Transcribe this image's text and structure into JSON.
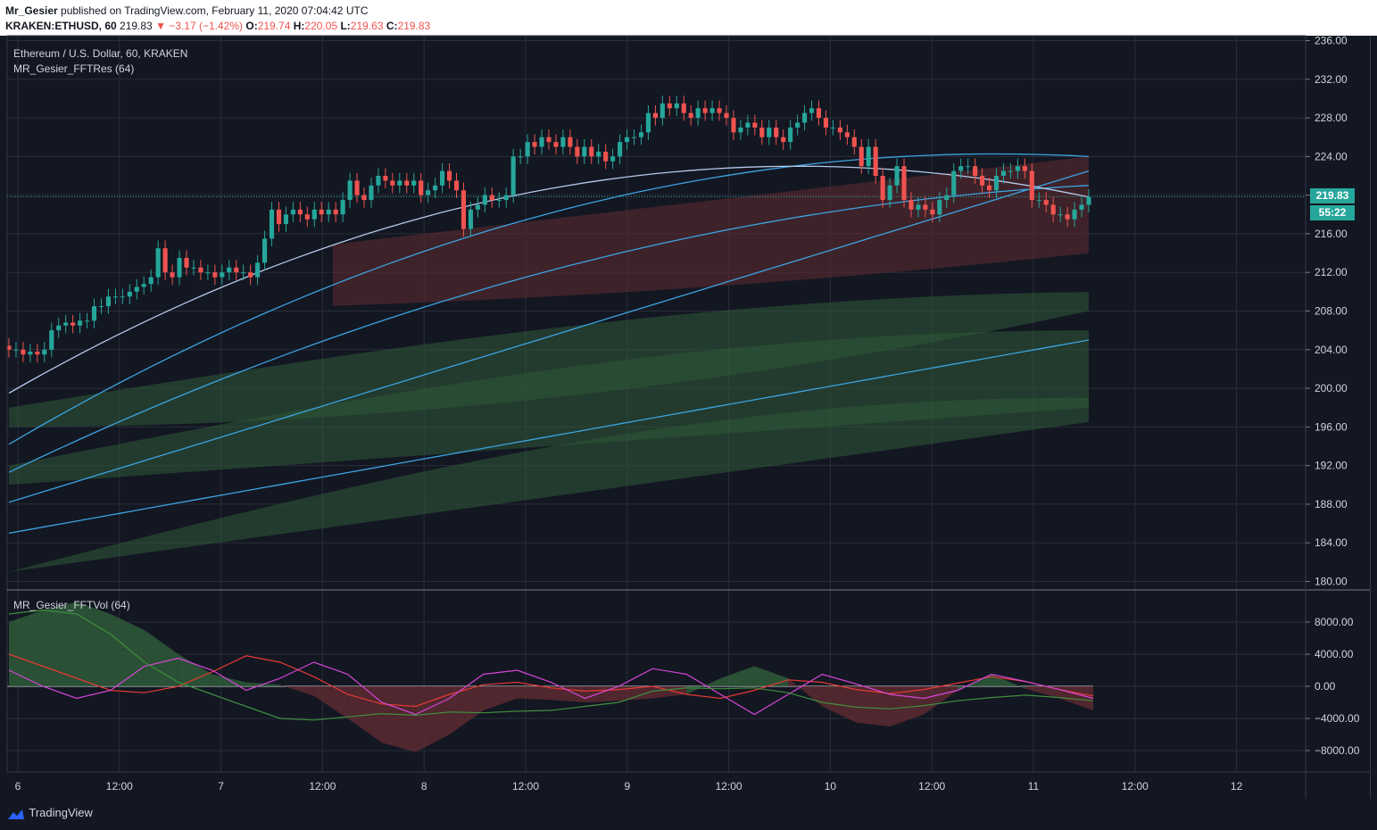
{
  "header": {
    "author": "Mr_Gesier",
    "published_text": "published on TradingView.com, February 11, 2020 07:04:42 UTC",
    "symbol": "KRAKEN:ETHUSD, 60",
    "last": "219.83",
    "change": "▼ −3.17 (−1.42%)",
    "o_label": "O:",
    "o_value": "219.74",
    "h_label": "H:",
    "h_value": "220.05",
    "l_label": "L:",
    "l_value": "219.63",
    "c_label": "C:",
    "c_value": "219.83"
  },
  "price_pane": {
    "title": "Ethereum / U.S. Dollar, 60, KRAKEN",
    "indicator": "MR_Gesier_FFTRes (64)",
    "last_price_label": "219.83",
    "countdown_label": "55:22"
  },
  "volume_pane": {
    "indicator": "MR_Gesier_FFTVol (64)"
  },
  "footer": {
    "brand": "TradingView"
  },
  "colors": {
    "background": "#131722",
    "grid": "#2a2e39",
    "up": "#26a69a",
    "down": "#ef5350",
    "band_green": "#2f5a38",
    "band_red": "#5c2a30",
    "line_blue": "#3ca3e0",
    "line_pale": "#b5c8e8"
  },
  "chart_data": [
    {
      "type": "candlestick",
      "title": "Ethereum / U.S. Dollar, 60, KRAKEN",
      "y_ticks": [
        "180.00",
        "184.00",
        "188.00",
        "192.00",
        "196.00",
        "200.00",
        "204.00",
        "208.00",
        "212.00",
        "216.00",
        "220.00",
        "224.00",
        "228.00",
        "232.00",
        "236.00"
      ],
      "x_ticks": [
        "6",
        "12:00",
        "7",
        "12:00",
        "8",
        "12:00",
        "9",
        "12:00",
        "10",
        "12:00",
        "11",
        "12:00",
        "12"
      ],
      "ylim": [
        179.5,
        236.3
      ],
      "last_price": 219.83,
      "close_series": [
        204.0,
        204.0,
        203.5,
        203.8,
        203.5,
        204.0,
        206.0,
        206.5,
        206.8,
        206.5,
        207.0,
        207.0,
        208.5,
        208.5,
        209.5,
        209.5,
        209.5,
        210.0,
        210.5,
        210.8,
        211.5,
        214.5,
        212.0,
        211.5,
        213.5,
        212.5,
        212.5,
        212.0,
        212.0,
        211.5,
        212.0,
        212.5,
        212.0,
        212.0,
        211.5,
        213.0,
        215.5,
        218.5,
        217.0,
        218.0,
        218.5,
        218.0,
        217.5,
        218.5,
        218.0,
        218.5,
        218.0,
        219.5,
        221.5,
        220.0,
        219.5,
        221.0,
        222.0,
        221.5,
        221.0,
        221.5,
        221.0,
        221.5,
        220.0,
        220.5,
        221.0,
        222.5,
        221.5,
        220.5,
        216.5,
        218.5,
        219.0,
        220.0,
        219.5,
        219.5,
        220.0,
        224.0,
        224.0,
        225.5,
        225.0,
        226.0,
        225.5,
        225.0,
        226.0,
        225.0,
        224.0,
        225.0,
        224.0,
        224.5,
        223.5,
        224.0,
        225.5,
        226.0,
        226.0,
        226.5,
        228.5,
        228.0,
        229.5,
        229.0,
        229.5,
        228.5,
        228.0,
        229.0,
        228.5,
        229.0,
        228.5,
        228.0,
        226.5,
        227.0,
        227.5,
        227.0,
        226.0,
        227.0,
        226.0,
        225.5,
        227.0,
        227.5,
        228.5,
        229.0,
        228.0,
        227.0,
        227.0,
        226.5,
        226.0,
        225.0,
        223.0,
        225.0,
        222.0,
        219.5,
        221.0,
        223.0,
        219.5,
        218.5,
        219.0,
        218.5,
        218.0,
        219.5,
        220.0,
        222.5,
        223.0,
        223.0,
        222.0,
        221.0,
        220.5,
        222.0,
        222.5,
        222.5,
        223.0,
        222.5,
        219.5,
        219.5,
        219.0,
        218.0,
        218.0,
        217.5,
        218.5,
        219.0,
        219.8
      ],
      "series": [
        {
          "name": "MR_Gesier_FFTRes (64)",
          "kind": "bands",
          "x_last_of": 151,
          "lines": [
            {
              "start": 185.0,
              "end": 205.0,
              "curve": 0.0
            },
            {
              "start": 188.2,
              "end": 222.5,
              "curve": 0.0
            },
            {
              "start": 191.3,
              "end": 221.0,
              "curve": -6.0
            },
            {
              "start": 194.2,
              "end": 224.0,
              "curve": -9.0
            },
            {
              "start": 199.5,
              "end": 219.8,
              "curve": -11.0
            }
          ]
        }
      ]
    },
    {
      "type": "area",
      "title": "MR_Gesier_FFTVol (64)",
      "y_ticks": [
        "−8000.00",
        "−4000.00",
        "0.00",
        "4000.00",
        "8000.00"
      ],
      "ylim": [
        -10000,
        11000
      ],
      "series": [
        {
          "name": "oscillator_area",
          "values": [
            8000,
            9500,
            10500,
            9000,
            7000,
            4000,
            1500,
            500,
            200,
            -1200,
            -4000,
            -7000,
            -8200,
            -6000,
            -3000,
            -1500,
            -1700,
            -2000,
            -1800,
            -1500,
            -1000,
            1000,
            2500,
            1000,
            -2500,
            -4500,
            -5000,
            -3500,
            -500,
            1500,
            -300,
            -1500,
            -3000
          ]
        },
        {
          "name": "line_red",
          "values": [
            4000,
            2500,
            1000,
            -500,
            -800,
            0,
            1800,
            3800,
            3000,
            1200,
            -1000,
            -2200,
            -2500,
            -1000,
            200,
            500,
            -200,
            -600,
            -400,
            0,
            -1000,
            -1500,
            -500,
            800,
            500,
            -400,
            -900,
            -400,
            400,
            1200,
            600,
            -400,
            -1200
          ]
        },
        {
          "name": "line_magenta",
          "values": [
            2000,
            0,
            -1500,
            -500,
            2500,
            3500,
            2000,
            -500,
            1000,
            3000,
            1500,
            -2000,
            -3500,
            -1500,
            1500,
            2000,
            500,
            -1500,
            0,
            2200,
            1500,
            -1000,
            -3500,
            -1000,
            1500,
            300,
            -1000,
            -1500,
            -500,
            1500,
            600,
            -400,
            -1500
          ]
        },
        {
          "name": "line_green",
          "values": [
            9000,
            9500,
            9000,
            6500,
            3000,
            500,
            -1000,
            -2500,
            -4000,
            -4200,
            -3800,
            -3400,
            -3600,
            -3200,
            -3300,
            -3100,
            -3000,
            -2500,
            -2000,
            -600,
            -200,
            -300,
            -200,
            -800,
            -2000,
            -2600,
            -2800,
            -2400,
            -1800,
            -1400,
            -1100,
            -1400,
            -1800
          ]
        }
      ]
    }
  ]
}
